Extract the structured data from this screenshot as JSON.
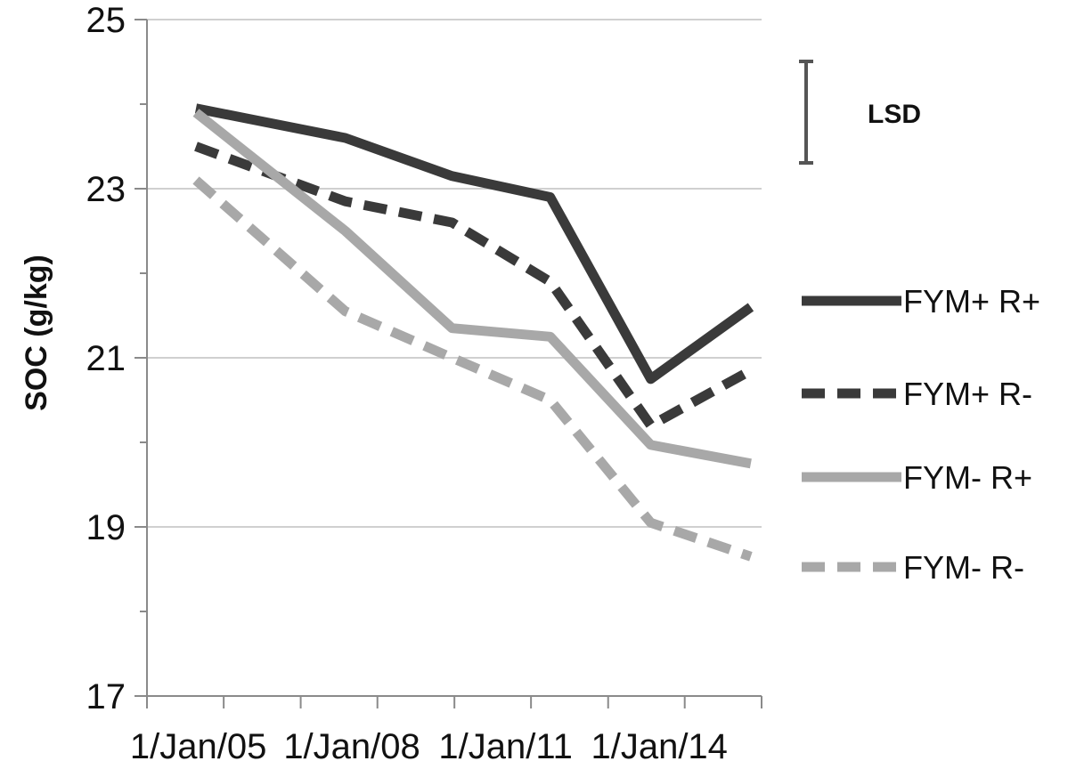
{
  "chart_data": {
    "type": "line",
    "title": "",
    "xlabel": "",
    "ylabel": "SOC (g/kg)",
    "ylim": [
      17,
      25
    ],
    "yticks": [
      "17",
      "19",
      "21",
      "23",
      "25"
    ],
    "xlim": [
      "2004-01-01",
      "2015-12-31"
    ],
    "xticks": [
      {
        "date": "2005-01-01",
        "label": "1/Jan/05"
      },
      {
        "date": "2008-01-01",
        "label": "1/Jan/08"
      },
      {
        "date": "2011-01-01",
        "label": "1/Jan/11"
      },
      {
        "date": "2014-01-01",
        "label": "1/Jan/14"
      }
    ],
    "grid": "horizontal",
    "legend_position": "right",
    "lsd": {
      "label": "LSD",
      "value": 1.2
    },
    "series": [
      {
        "name": "FYM+  R+",
        "color": "#3a3a3a",
        "dash": "solid",
        "x": [
          "2004-12-15",
          "2007-11-15",
          "2009-12-15",
          "2011-11-15",
          "2013-11-01",
          "2015-10-15"
        ],
        "y": [
          23.95,
          23.6,
          23.15,
          22.9,
          20.75,
          21.6
        ]
      },
      {
        "name": "FYM+  R-",
        "color": "#3a3a3a",
        "dash": "dashed",
        "x": [
          "2004-12-15",
          "2007-11-15",
          "2009-12-15",
          "2011-11-15",
          "2013-11-01",
          "2015-10-15"
        ],
        "y": [
          23.5,
          22.85,
          22.6,
          21.9,
          20.2,
          20.85
        ]
      },
      {
        "name": "FYM-  R+",
        "color": "#a8a8a8",
        "dash": "solid",
        "x": [
          "2004-12-15",
          "2007-11-15",
          "2009-12-15",
          "2011-11-15",
          "2013-11-01",
          "2015-10-15"
        ],
        "y": [
          23.9,
          22.5,
          21.35,
          21.25,
          19.97,
          19.75
        ]
      },
      {
        "name": "FYM-  R-",
        "color": "#a8a8a8",
        "dash": "dashed",
        "x": [
          "2004-12-15",
          "2007-11-15",
          "2009-12-15",
          "2011-11-15",
          "2013-11-01",
          "2015-10-15"
        ],
        "y": [
          23.1,
          21.55,
          21.0,
          20.5,
          19.05,
          18.65
        ]
      }
    ]
  }
}
